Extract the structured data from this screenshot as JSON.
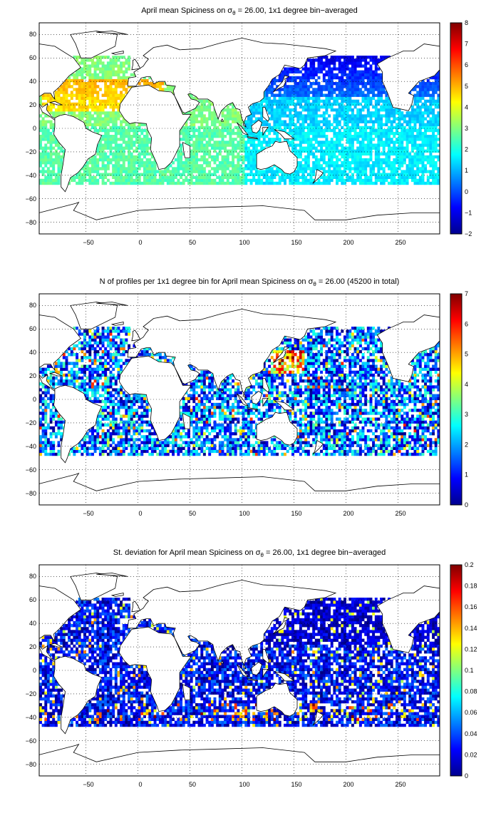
{
  "figure": {
    "panels": [
      {
        "title_before_sigma": "April mean Spiciness on ",
        "title_after_sigma": " = 26.00, 1x1 degree bin−averaged",
        "sigma_symbol": "σ",
        "sigma_subscript": "θ",
        "x_ticks": [
          "−50",
          "0",
          "50",
          "100",
          "150",
          "200",
          "250"
        ],
        "y_ticks": [
          "80",
          "60",
          "40",
          "20",
          "0",
          "−20",
          "−40",
          "−60",
          "−80"
        ],
        "colorbar_ticks": [
          "8",
          "7",
          "6",
          "5",
          "4",
          "3",
          "2",
          "1",
          "0",
          "−1",
          "−2"
        ]
      },
      {
        "title_before_sigma": "N of profiles per 1x1 degree bin for April mean Spiciness on ",
        "title_after_sigma": " = 26.00 (45200 in total)",
        "sigma_symbol": "σ",
        "sigma_subscript": "θ",
        "x_ticks": [
          "−50",
          "0",
          "50",
          "100",
          "150",
          "200",
          "250"
        ],
        "y_ticks": [
          "80",
          "60",
          "40",
          "20",
          "0",
          "−20",
          "−40",
          "−60",
          "−80"
        ],
        "colorbar_ticks": [
          "7",
          "6",
          "5",
          "4",
          "3",
          "2",
          "1",
          "0"
        ]
      },
      {
        "title_before_sigma": "St. deviation for April mean Spiciness on ",
        "title_after_sigma": " = 26.00, 1x1 degree bin−averaged",
        "sigma_symbol": "σ",
        "sigma_subscript": "θ",
        "x_ticks": [
          "−50",
          "0",
          "50",
          "100",
          "150",
          "200",
          "250"
        ],
        "y_ticks": [
          "80",
          "60",
          "40",
          "20",
          "0",
          "−20",
          "−40",
          "−60",
          "−80"
        ],
        "colorbar_ticks": [
          "0.2",
          "0.18",
          "0.16",
          "0.14",
          "0.12",
          "0.1",
          "0.08",
          "0.06",
          "0.04",
          "0.02",
          "0"
        ]
      }
    ],
    "colormap": "jet",
    "grid": "dotted",
    "x_range": [
      -95,
      290
    ],
    "y_range": [
      -90,
      90
    ]
  }
}
